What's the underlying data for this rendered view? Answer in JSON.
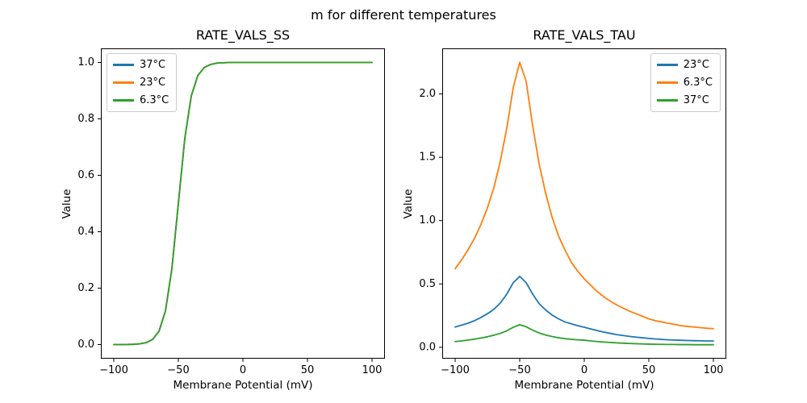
{
  "figure": {
    "suptitle": "m for different temperatures"
  },
  "chart_data": [
    {
      "type": "line",
      "title": "RATE_VALS_SS",
      "xlabel": "Membrane Potential (mV)",
      "ylabel": "Value",
      "xlim": [
        -110,
        110
      ],
      "ylim": [
        -0.05,
        1.05
      ],
      "grid": false,
      "legend_position": "upper-left",
      "xticks": [
        {
          "v": -100,
          "label": "−100"
        },
        {
          "v": -50,
          "label": "−50"
        },
        {
          "v": 0,
          "label": "0"
        },
        {
          "v": 50,
          "label": "50"
        },
        {
          "v": 100,
          "label": "100"
        }
      ],
      "yticks": [
        {
          "v": 0.0,
          "label": "0.0"
        },
        {
          "v": 0.2,
          "label": "0.2"
        },
        {
          "v": 0.4,
          "label": "0.4"
        },
        {
          "v": 0.6,
          "label": "0.6"
        },
        {
          "v": 0.8,
          "label": "0.8"
        },
        {
          "v": 1.0,
          "label": "1.0"
        }
      ],
      "x": [
        -100,
        -95,
        -90,
        -85,
        -80,
        -75,
        -70,
        -65,
        -60,
        -55,
        -50,
        -45,
        -40,
        -35,
        -30,
        -25,
        -20,
        -15,
        -10,
        -5,
        0,
        5,
        10,
        15,
        20,
        25,
        30,
        35,
        40,
        45,
        50,
        55,
        60,
        65,
        70,
        75,
        80,
        85,
        90,
        95,
        100
      ],
      "series": [
        {
          "name": "37C",
          "label": "37°C",
          "color": "#1f77b4",
          "values": [
            0.0,
            0.0001,
            0.0003,
            0.0009,
            0.0025,
            0.0067,
            0.018,
            0.047,
            0.119,
            0.269,
            0.5,
            0.731,
            0.881,
            0.953,
            0.982,
            0.993,
            0.998,
            0.999,
            1.0,
            1.0,
            1.0,
            1.0,
            1.0,
            1.0,
            1.0,
            1.0,
            1.0,
            1.0,
            1.0,
            1.0,
            1.0,
            1.0,
            1.0,
            1.0,
            1.0,
            1.0,
            1.0,
            1.0,
            1.0,
            1.0,
            1.0
          ]
        },
        {
          "name": "23C",
          "label": "23°C",
          "color": "#ff7f0e",
          "values": [
            0.0,
            0.0001,
            0.0003,
            0.0009,
            0.0025,
            0.0067,
            0.018,
            0.047,
            0.119,
            0.269,
            0.5,
            0.731,
            0.881,
            0.953,
            0.982,
            0.993,
            0.998,
            0.999,
            1.0,
            1.0,
            1.0,
            1.0,
            1.0,
            1.0,
            1.0,
            1.0,
            1.0,
            1.0,
            1.0,
            1.0,
            1.0,
            1.0,
            1.0,
            1.0,
            1.0,
            1.0,
            1.0,
            1.0,
            1.0,
            1.0,
            1.0
          ]
        },
        {
          "name": "6.3C",
          "label": "6.3°C",
          "color": "#2ca02c",
          "values": [
            0.0,
            0.0001,
            0.0003,
            0.0009,
            0.0025,
            0.0067,
            0.018,
            0.047,
            0.119,
            0.269,
            0.5,
            0.731,
            0.881,
            0.953,
            0.982,
            0.993,
            0.998,
            0.999,
            1.0,
            1.0,
            1.0,
            1.0,
            1.0,
            1.0,
            1.0,
            1.0,
            1.0,
            1.0,
            1.0,
            1.0,
            1.0,
            1.0,
            1.0,
            1.0,
            1.0,
            1.0,
            1.0,
            1.0,
            1.0,
            1.0,
            1.0
          ]
        }
      ]
    },
    {
      "type": "line",
      "title": "RATE_VALS_TAU",
      "xlabel": "Membrane Potential (mV)",
      "ylabel": "Value",
      "xlim": [
        -110,
        110
      ],
      "ylim": [
        -0.09,
        2.36
      ],
      "grid": false,
      "legend_position": "upper-right",
      "xticks": [
        {
          "v": -100,
          "label": "−100"
        },
        {
          "v": -50,
          "label": "−50"
        },
        {
          "v": 0,
          "label": "0"
        },
        {
          "v": 50,
          "label": "50"
        },
        {
          "v": 100,
          "label": "100"
        }
      ],
      "yticks": [
        {
          "v": 0.0,
          "label": "0.0"
        },
        {
          "v": 0.5,
          "label": "0.5"
        },
        {
          "v": 1.0,
          "label": "1.0"
        },
        {
          "v": 1.5,
          "label": "1.5"
        },
        {
          "v": 2.0,
          "label": "2.0"
        }
      ],
      "x": [
        -100,
        -95,
        -90,
        -85,
        -80,
        -75,
        -70,
        -65,
        -60,
        -55,
        -50,
        -45,
        -40,
        -35,
        -30,
        -25,
        -20,
        -15,
        -10,
        -5,
        0,
        5,
        10,
        15,
        20,
        25,
        30,
        35,
        40,
        45,
        50,
        55,
        60,
        65,
        70,
        75,
        80,
        85,
        90,
        95,
        100
      ],
      "series": [
        {
          "name": "23C",
          "label": "23°C",
          "color": "#1f77b4",
          "values": [
            0.16,
            0.175,
            0.19,
            0.21,
            0.235,
            0.265,
            0.3,
            0.35,
            0.42,
            0.51,
            0.56,
            0.51,
            0.42,
            0.345,
            0.295,
            0.255,
            0.225,
            0.2,
            0.185,
            0.17,
            0.158,
            0.145,
            0.132,
            0.12,
            0.11,
            0.1,
            0.093,
            0.086,
            0.08,
            0.075,
            0.07,
            0.066,
            0.062,
            0.059,
            0.057,
            0.055,
            0.053,
            0.052,
            0.051,
            0.05,
            0.05
          ]
        },
        {
          "name": "6.3C",
          "label": "6.3°C",
          "color": "#ff7f0e",
          "values": [
            0.62,
            0.69,
            0.77,
            0.86,
            0.97,
            1.1,
            1.26,
            1.47,
            1.73,
            2.05,
            2.25,
            2.1,
            1.75,
            1.45,
            1.22,
            1.03,
            0.88,
            0.77,
            0.67,
            0.6,
            0.54,
            0.49,
            0.44,
            0.4,
            0.365,
            0.335,
            0.31,
            0.285,
            0.265,
            0.245,
            0.225,
            0.21,
            0.2,
            0.19,
            0.18,
            0.17,
            0.165,
            0.16,
            0.155,
            0.15,
            0.147
          ]
        },
        {
          "name": "37C",
          "label": "37°C",
          "color": "#2ca02c",
          "values": [
            0.045,
            0.05,
            0.057,
            0.064,
            0.073,
            0.083,
            0.095,
            0.11,
            0.13,
            0.158,
            0.178,
            0.162,
            0.135,
            0.113,
            0.097,
            0.085,
            0.075,
            0.068,
            0.063,
            0.059,
            0.056,
            0.05,
            0.045,
            0.041,
            0.038,
            0.035,
            0.032,
            0.03,
            0.028,
            0.026,
            0.025,
            0.024,
            0.023,
            0.022,
            0.022,
            0.021,
            0.021,
            0.02,
            0.02,
            0.02,
            0.02
          ]
        }
      ]
    }
  ]
}
